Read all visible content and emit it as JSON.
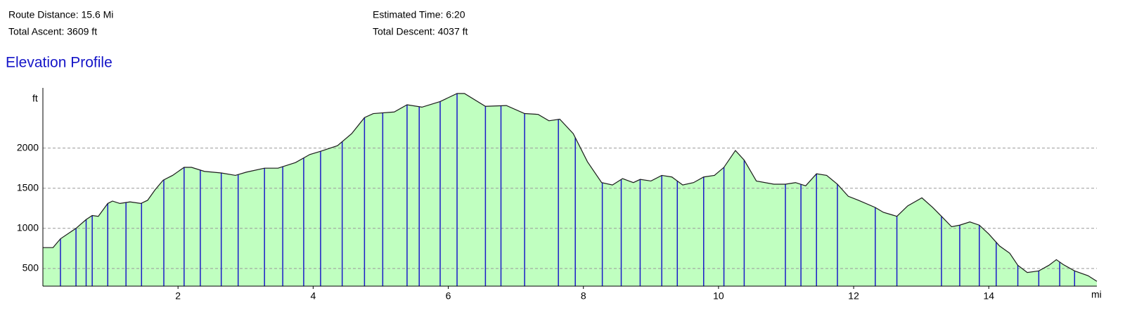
{
  "header": {
    "stats": [
      "Route Distance: 15.6 Mi",
      "Total Ascent: 3609 ft",
      "Estimated Time: 6:20",
      "Total Descent: 4037 ft"
    ]
  },
  "chart_data": {
    "type": "area",
    "title": "Elevation Profile",
    "x_label": "mi",
    "y_label": "ft",
    "xlim": [
      0,
      15.6
    ],
    "ylim": [
      280,
      2750
    ],
    "xticks": [
      2,
      4,
      6,
      8,
      10,
      12,
      14
    ],
    "yticks": [
      500,
      1000,
      1500,
      2000
    ],
    "grid": true,
    "fill": "#c0ffc0",
    "line_color": "#1a1a1a",
    "waypoint_color": "#1a1ac8",
    "x": [
      0,
      0.15,
      0.26,
      0.49,
      0.64,
      0.73,
      0.82,
      0.96,
      1.03,
      1.14,
      1.29,
      1.45,
      1.55,
      1.66,
      1.78,
      1.92,
      2.09,
      2.2,
      2.39,
      2.64,
      2.85,
      3.01,
      3.28,
      3.48,
      3.74,
      3.95,
      4.11,
      4.36,
      4.57,
      4.76,
      4.89,
      5.2,
      5.39,
      5.61,
      5.88,
      6.13,
      6.24,
      6.55,
      6.86,
      7.13,
      7.33,
      7.49,
      7.65,
      7.85,
      8.06,
      8.27,
      8.43,
      8.58,
      8.74,
      8.84,
      9,
      9.16,
      9.31,
      9.47,
      9.63,
      9.78,
      9.94,
      10.08,
      10.25,
      10.38,
      10.56,
      10.82,
      10.99,
      11.14,
      11.29,
      11.45,
      11.6,
      11.76,
      11.92,
      12.07,
      12.32,
      12.44,
      12.64,
      12.8,
      13.01,
      13.17,
      13.3,
      13.45,
      13.57,
      13.72,
      13.86,
      14,
      14.16,
      14.31,
      14.43,
      14.57,
      14.74,
      14.89,
      15,
      15.1,
      15.27,
      15.47,
      15.6
    ],
    "values": [
      760,
      760,
      870,
      1000,
      1110,
      1160,
      1150,
      1310,
      1340,
      1310,
      1330,
      1310,
      1350,
      1480,
      1600,
      1660,
      1760,
      1760,
      1710,
      1690,
      1660,
      1700,
      1750,
      1750,
      1820,
      1920,
      1960,
      2030,
      2180,
      2380,
      2430,
      2450,
      2540,
      2510,
      2580,
      2680,
      2680,
      2520,
      2530,
      2430,
      2420,
      2340,
      2360,
      2180,
      1830,
      1570,
      1540,
      1620,
      1570,
      1610,
      1590,
      1660,
      1640,
      1540,
      1570,
      1640,
      1660,
      1760,
      1970,
      1850,
      1590,
      1550,
      1550,
      1570,
      1530,
      1680,
      1660,
      1550,
      1400,
      1350,
      1260,
      1200,
      1150,
      1280,
      1380,
      1260,
      1150,
      1020,
      1040,
      1080,
      1040,
      930,
      780,
      690,
      540,
      450,
      470,
      540,
      610,
      550,
      470,
      410,
      340
    ],
    "waypoints": [
      0.26,
      0.49,
      0.64,
      0.73,
      0.96,
      1.23,
      1.46,
      1.79,
      2.09,
      2.33,
      2.64,
      2.89,
      3.28,
      3.55,
      3.86,
      4.11,
      4.43,
      4.76,
      5.03,
      5.39,
      5.57,
      5.88,
      6.13,
      6.55,
      6.78,
      7.13,
      7.63,
      7.88,
      8.28,
      8.56,
      8.84,
      9.16,
      9.39,
      9.78,
      10.08,
      10.38,
      10.99,
      11.22,
      11.45,
      11.76,
      12.32,
      12.64,
      13.3,
      13.57,
      13.86,
      14.11,
      14.43,
      14.74,
      15.05,
      15.27
    ]
  }
}
